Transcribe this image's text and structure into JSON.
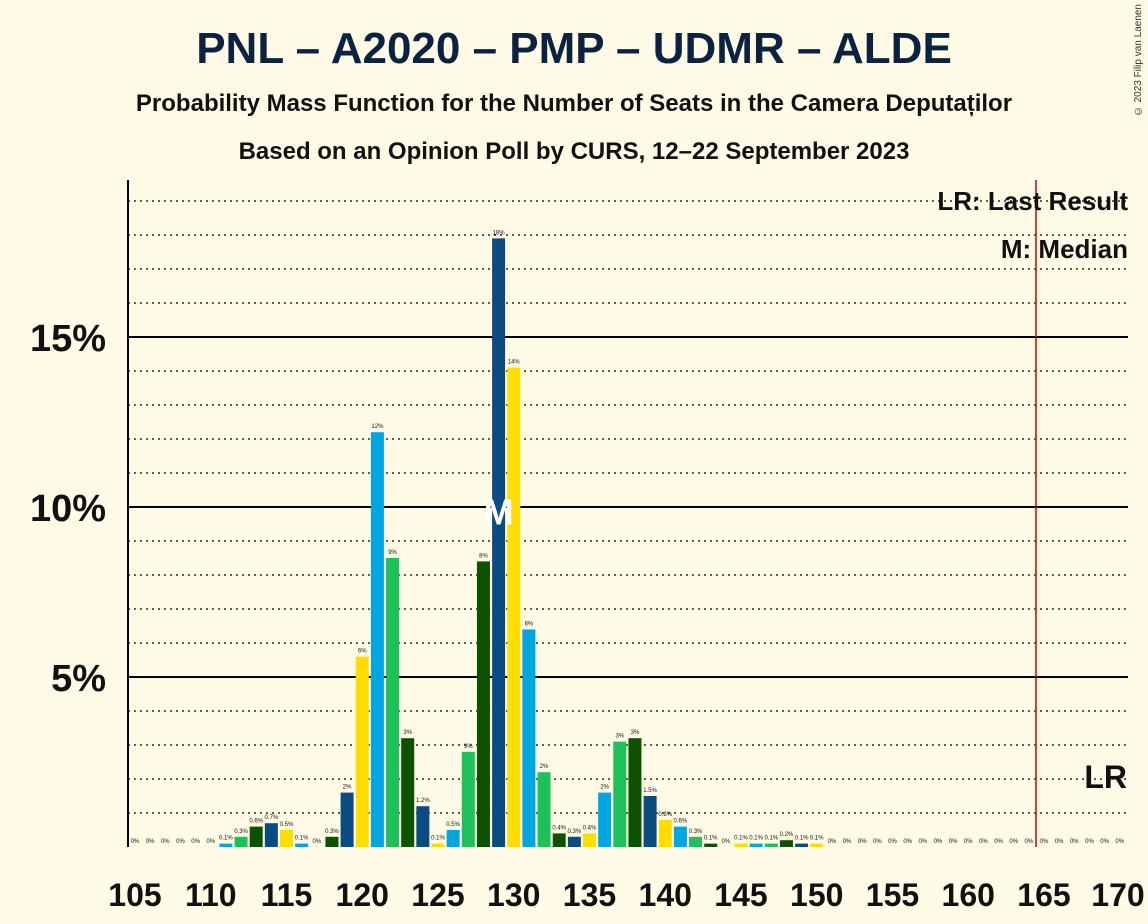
{
  "title": "PNL – A2020 – PMP – UDMR – ALDE",
  "subtitle": "Probability Mass Function for the Number of Seats in the Camera Deputaților",
  "subtitle2": "Based on an Opinion Poll by CURS, 12–22 September 2023",
  "copyright": "© 2023 Filip van Laenen",
  "legend": {
    "lr": "LR: Last Result",
    "m": "M: Median"
  },
  "markers": {
    "lr_label": "LR",
    "m_label": "M"
  },
  "colors": {
    "yellow": "#ffdd00",
    "blue": "#00a6e0",
    "green": "#1ec05a",
    "darkgreen": "#0d5200",
    "navy": "#0a4c82",
    "lr_line": "#cc0000"
  },
  "chart_data": {
    "type": "bar",
    "x": [
      105,
      106,
      107,
      108,
      109,
      110,
      111,
      112,
      113,
      114,
      115,
      116,
      117,
      118,
      119,
      120,
      121,
      122,
      123,
      124,
      125,
      126,
      127,
      128,
      129,
      130,
      131,
      132,
      133,
      134,
      135,
      136,
      137,
      138,
      139,
      140,
      141,
      142,
      143,
      144,
      145,
      146,
      147,
      148,
      149,
      150,
      151,
      152,
      153,
      154,
      155,
      156,
      157,
      158,
      159,
      160,
      161,
      162,
      163,
      164,
      165,
      166,
      167,
      168,
      169,
      170
    ],
    "values": [
      0,
      0,
      0,
      0,
      0,
      0,
      0.1,
      0.3,
      0.6,
      0.7,
      0.5,
      0.1,
      0,
      0.3,
      1.6,
      5.6,
      12.2,
      8.5,
      3.2,
      1.2,
      0.1,
      0.5,
      2.8,
      8.4,
      17.9,
      14.1,
      6.4,
      2.2,
      0.4,
      0.3,
      0.4,
      1.6,
      3.1,
      3.2,
      1.5,
      0.8,
      0.6,
      0.3,
      0.1,
      0,
      0.1,
      0.1,
      0.1,
      0.2,
      0.1,
      0.1,
      0,
      0,
      0,
      0,
      0,
      0,
      0,
      0,
      0,
      0,
      0,
      0,
      0,
      0,
      0,
      0,
      0,
      0,
      0,
      0
    ],
    "labels": [
      "0%",
      "0%",
      "0%",
      "0%",
      "0%",
      "0%",
      "0.1%",
      "0.3%",
      "0.6%",
      "0.7%",
      "0.5%",
      "0.1%",
      "0%",
      "0.3%",
      "2%",
      "6%",
      "12%",
      "9%",
      "3%",
      "1.2%",
      "0.1%",
      "0.5%",
      "3%",
      "8%",
      "18%",
      "14%",
      "6%",
      "2%",
      "0.4%",
      "0.3%",
      "0.4%",
      "2%",
      "3%",
      "3%",
      "1.5%",
      "0.8%",
      "0.6%",
      "0.3%",
      "0.1%",
      "0%",
      "0.1%",
      "0.1%",
      "0.1%",
      "0.2%",
      "0.1%",
      "0.1%",
      "0%",
      "0%",
      "0%",
      "0%",
      "0%",
      "0%",
      "0%",
      "0%",
      "0%",
      "0%",
      "0%",
      "0%",
      "0%",
      "0%",
      "0%",
      "0%",
      "0%",
      "0%",
      "0%",
      "0%"
    ],
    "color_cycle": [
      "yellow",
      "blue",
      "green",
      "darkgreen",
      "navy"
    ],
    "x_ticks": [
      "105",
      "110",
      "115",
      "120",
      "125",
      "130",
      "135",
      "140",
      "145",
      "150",
      "155",
      "160",
      "165",
      "170"
    ],
    "y_ticks": [
      "5%",
      "10%",
      "15%"
    ],
    "ylim": [
      0,
      19.5
    ],
    "median": 129,
    "last_result": 165
  }
}
